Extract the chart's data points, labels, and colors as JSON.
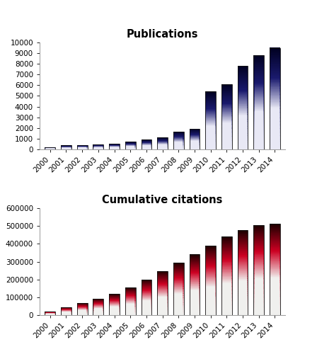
{
  "years": [
    2000,
    2001,
    2002,
    2003,
    2004,
    2005,
    2006,
    2007,
    2008,
    2009,
    2010,
    2011,
    2012,
    2013,
    2014
  ],
  "publications": [
    230,
    370,
    420,
    480,
    540,
    720,
    920,
    1120,
    1680,
    1950,
    5400,
    6100,
    7800,
    8800,
    9500
  ],
  "citations": [
    20000,
    45000,
    68000,
    92000,
    118000,
    155000,
    200000,
    248000,
    295000,
    340000,
    390000,
    440000,
    475000,
    505000,
    513000
  ],
  "pub_title": "Publications",
  "cit_title": "Cumulative citations",
  "pub_ylim": [
    0,
    10000
  ],
  "pub_yticks": [
    0,
    1000,
    2000,
    3000,
    4000,
    5000,
    6000,
    7000,
    8000,
    9000,
    10000
  ],
  "cit_ylim": [
    0,
    600000
  ],
  "cit_yticks": [
    0,
    100000,
    200000,
    300000,
    400000,
    500000,
    600000
  ],
  "pub_color_top": "#000020",
  "pub_color_mid": "#1a1a6e",
  "pub_color_bottom": "#e8e8f5",
  "cit_color_top": "#1a0000",
  "cit_color_mid": "#cc0022",
  "cit_color_bottom": "#f0f0ee",
  "bar_width": 0.65,
  "title_fontsize": 10.5,
  "tick_fontsize": 7.5,
  "ytick_fontsize": 7.5,
  "bg_color": "#ffffff"
}
